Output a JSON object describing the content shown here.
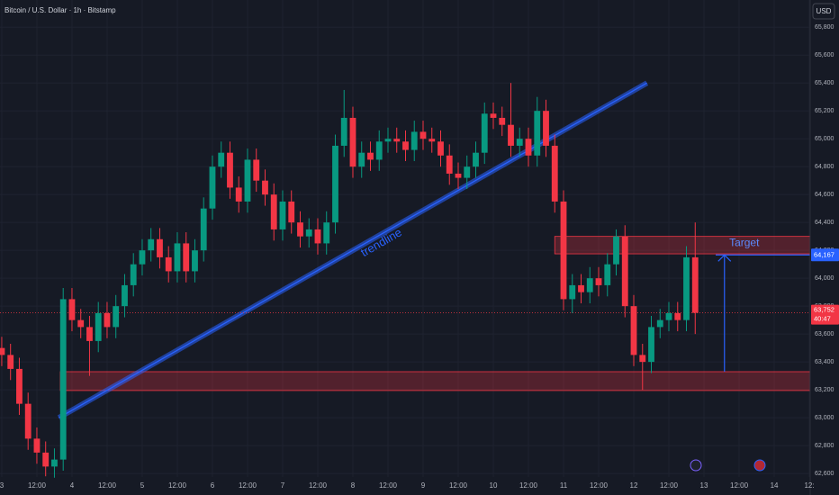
{
  "chart_data": {
    "type": "candlestick",
    "title": "Bitcoin / U.S. Dollar · 1h · Bitstamp",
    "currency_button": "USD",
    "colors": {
      "up": "#089981",
      "down": "#f23645"
    },
    "grid": true,
    "xlim": [
      -0.6,
      276.3
    ],
    "ylim": [
      62575,
      65995
    ],
    "xticks": [
      {
        "value": 0,
        "label": "3"
      },
      {
        "value": 12,
        "label": "12:00"
      },
      {
        "value": 24,
        "label": "4"
      },
      {
        "value": 36,
        "label": "12:00"
      },
      {
        "value": 48,
        "label": "5"
      },
      {
        "value": 60,
        "label": "12:00"
      },
      {
        "value": 72,
        "label": "6"
      },
      {
        "value": 84,
        "label": "12:00"
      },
      {
        "value": 96,
        "label": "7"
      },
      {
        "value": 108,
        "label": "12:00"
      },
      {
        "value": 120,
        "label": "8"
      },
      {
        "value": 132,
        "label": "12:00"
      },
      {
        "value": 144,
        "label": "9"
      },
      {
        "value": 156,
        "label": "12:00"
      },
      {
        "value": 168,
        "label": "10"
      },
      {
        "value": 180,
        "label": "12:00"
      },
      {
        "value": 192,
        "label": "11"
      },
      {
        "value": 204,
        "label": "12:00"
      },
      {
        "value": 216,
        "label": "12"
      },
      {
        "value": 228,
        "label": "12:00"
      },
      {
        "value": 240,
        "label": "13"
      },
      {
        "value": 252,
        "label": "12:00"
      },
      {
        "value": 264,
        "label": "14"
      },
      {
        "value": 276,
        "label": "12:"
      }
    ],
    "yticks": [
      {
        "value": 62600,
        "label": "62,600"
      },
      {
        "value": 62800,
        "label": "62,800"
      },
      {
        "value": 63000,
        "label": "63,000"
      },
      {
        "value": 63200,
        "label": "63,200"
      },
      {
        "value": 63400,
        "label": "63,400"
      },
      {
        "value": 63600,
        "label": "63,600"
      },
      {
        "value": 63800,
        "label": "63,800"
      },
      {
        "value": 64000,
        "label": "64,000"
      },
      {
        "value": 64200,
        "label": "64,200"
      },
      {
        "value": 64400,
        "label": "64,400"
      },
      {
        "value": 64600,
        "label": "64,600"
      },
      {
        "value": 64800,
        "label": "64,800"
      },
      {
        "value": 65000,
        "label": "65,000"
      },
      {
        "value": 65200,
        "label": "65,200"
      },
      {
        "value": 65400,
        "label": "65,400"
      },
      {
        "value": 65600,
        "label": "65,600"
      },
      {
        "value": 65800,
        "label": "65,800"
      }
    ],
    "x": [
      0,
      3,
      6,
      9,
      12,
      15,
      18,
      21,
      24,
      27,
      30,
      33,
      36,
      39,
      42,
      45,
      48,
      51,
      54,
      57,
      60,
      63,
      66,
      69,
      72,
      75,
      78,
      81,
      84,
      87,
      90,
      93,
      96,
      99,
      102,
      105,
      108,
      111,
      114,
      117,
      120,
      123,
      126,
      129,
      132,
      135,
      138,
      141,
      144,
      147,
      150,
      153,
      156,
      159,
      162,
      165,
      168,
      171,
      174,
      177,
      180,
      183,
      186,
      189,
      192,
      195,
      198,
      201,
      204,
      207,
      210,
      213,
      216,
      219,
      222,
      225,
      228,
      231,
      234,
      237
    ],
    "open": [
      63500,
      63450,
      63350,
      63100,
      62850,
      62750,
      62650,
      62700,
      63850,
      63700,
      63650,
      63550,
      63750,
      63650,
      63800,
      63950,
      64100,
      64200,
      64280,
      64150,
      64050,
      64250,
      64050,
      64200,
      64500,
      64800,
      64900,
      64650,
      64550,
      64850,
      64700,
      64600,
      64350,
      64550,
      64400,
      64300,
      64350,
      64250,
      64400,
      64950,
      65150,
      64800,
      64900,
      64850,
      64980,
      65000,
      64980,
      64920,
      65050,
      65000,
      64980,
      64880,
      64750,
      64720,
      64800,
      64900,
      65180,
      65150,
      65100,
      64950,
      65000,
      64880,
      65200,
      64950,
      64550,
      63850,
      63950,
      63900,
      64000,
      63950,
      64100,
      64300,
      63800,
      63450,
      63400,
      63650,
      63700,
      63750,
      63700,
      64150
    ],
    "high": [
      63580,
      63530,
      63430,
      63180,
      62930,
      62830,
      62780,
      63930,
      63930,
      63780,
      63730,
      63830,
      63830,
      63880,
      64030,
      64180,
      64280,
      64360,
      64360,
      64230,
      64330,
      64330,
      64280,
      64580,
      64880,
      64980,
      64980,
      64730,
      64930,
      64930,
      64780,
      64680,
      64630,
      64630,
      64480,
      64430,
      64430,
      64480,
      65030,
      65350,
      65230,
      64980,
      64980,
      65060,
      65080,
      65080,
      65060,
      65130,
      65130,
      65080,
      65060,
      64960,
      64830,
      64880,
      64980,
      65260,
      65260,
      65230,
      65400,
      65080,
      65080,
      65300,
      65280,
      65030,
      64630,
      64030,
      64030,
      64080,
      64080,
      64180,
      64350,
      64380,
      63880,
      63530,
      63730,
      63780,
      63830,
      63830,
      64230,
      64400
    ],
    "low": [
      63370,
      63270,
      63020,
      62770,
      62670,
      62580,
      62570,
      62620,
      63620,
      63570,
      63300,
      63470,
      63570,
      63570,
      63720,
      63870,
      64020,
      64120,
      64070,
      63970,
      63970,
      63970,
      63970,
      64120,
      64420,
      64720,
      64570,
      64470,
      64470,
      64620,
      64520,
      64270,
      64270,
      64320,
      64220,
      64220,
      64170,
      64170,
      64320,
      64870,
      64720,
      64720,
      64770,
      64770,
      64900,
      64900,
      64840,
      64840,
      64920,
      64900,
      64800,
      64670,
      64640,
      64640,
      64720,
      64820,
      65070,
      65020,
      64870,
      64870,
      64800,
      64800,
      64870,
      64470,
      63770,
      63750,
      63820,
      63820,
      63870,
      63870,
      64020,
      63720,
      63370,
      63200,
      63320,
      63570,
      63620,
      63620,
      63620,
      63600
    ],
    "close": [
      63450,
      63350,
      63100,
      62850,
      62750,
      62650,
      62700,
      63850,
      63700,
      63650,
      63550,
      63750,
      63650,
      63800,
      63950,
      64100,
      64200,
      64280,
      64150,
      64050,
      64250,
      64050,
      64200,
      64500,
      64800,
      64900,
      64650,
      64550,
      64850,
      64700,
      64600,
      64350,
      64550,
      64400,
      64300,
      64350,
      64250,
      64400,
      64950,
      65150,
      64800,
      64900,
      64850,
      64980,
      65000,
      64980,
      64920,
      65050,
      65000,
      64980,
      64880,
      64750,
      64720,
      64800,
      64900,
      65180,
      65150,
      65100,
      64950,
      65000,
      64880,
      65200,
      64950,
      64550,
      63850,
      63950,
      63900,
      64000,
      63950,
      64100,
      64300,
      63800,
      63450,
      63400,
      63650,
      63700,
      63750,
      63700,
      64150,
      63752
    ],
    "zones": [
      {
        "top": 64300,
        "bottom": 64175,
        "start": 189
      },
      {
        "top": 63330,
        "bottom": 63195,
        "start": 20
      }
    ],
    "trendline": {
      "label": "trendline",
      "x": [
        19.5,
        220.5
      ],
      "y": [
        63000,
        65400
      ]
    },
    "target": {
      "label": "Target",
      "x": 247,
      "from": 63330,
      "to": 64167,
      "line_start": 244
    },
    "target_price": {
      "value": 64167,
      "label": "64,167"
    },
    "current_price": {
      "value": 63752,
      "label": "63,752"
    },
    "timer": "40:47"
  }
}
